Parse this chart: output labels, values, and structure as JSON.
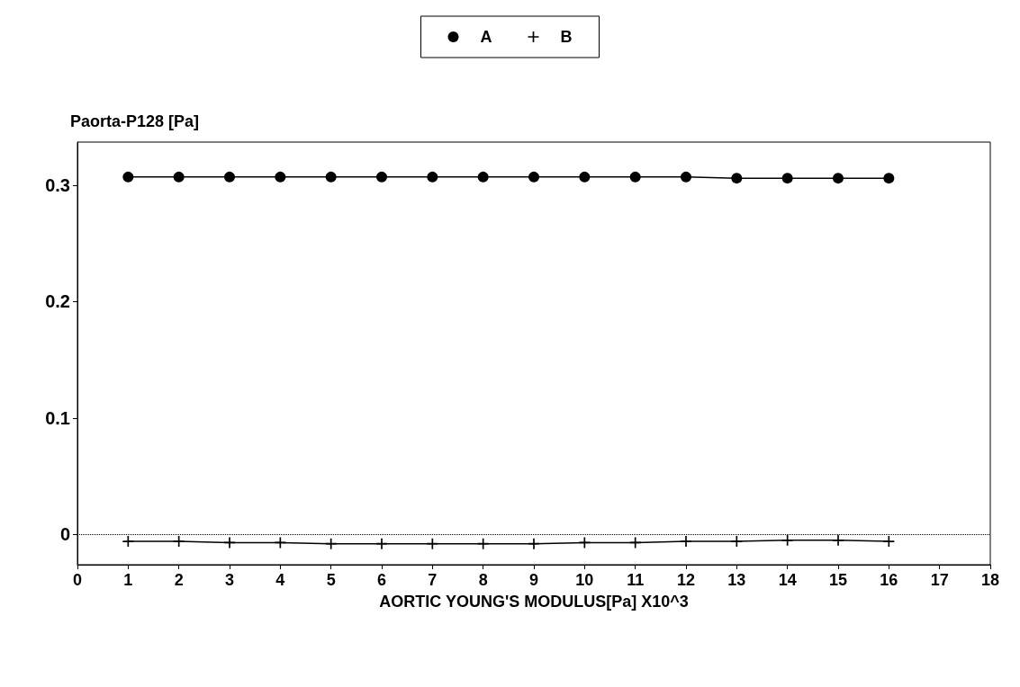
{
  "chart_data": {
    "type": "line",
    "xlabel": "AORTIC YOUNG'S MODULUS[Pa] X10^3",
    "ylabel": "Paorta-P128 [Pa]",
    "x": [
      1,
      2,
      3,
      4,
      5,
      6,
      7,
      8,
      9,
      10,
      11,
      12,
      13,
      14,
      15,
      16
    ],
    "series": [
      {
        "name": "A",
        "color": "#000000",
        "marker": "circle",
        "values": [
          0.307,
          0.307,
          0.307,
          0.307,
          0.307,
          0.307,
          0.307,
          0.307,
          0.307,
          0.307,
          0.307,
          0.307,
          0.306,
          0.306,
          0.306,
          0.306
        ]
      },
      {
        "name": "B",
        "color": "#000000",
        "marker": "cross",
        "values": [
          -0.006,
          -0.006,
          -0.007,
          -0.007,
          -0.008,
          -0.008,
          -0.008,
          -0.008,
          -0.008,
          -0.007,
          -0.007,
          -0.006,
          -0.006,
          -0.005,
          -0.005,
          -0.006
        ]
      }
    ],
    "xlim": [
      0,
      18
    ],
    "xticks": [
      0,
      1,
      2,
      3,
      4,
      5,
      6,
      7,
      8,
      9,
      10,
      11,
      12,
      13,
      14,
      15,
      16,
      17,
      18
    ],
    "ylim": [
      -0.026,
      0.337
    ],
    "yticks": [
      0,
      0.1,
      0.2,
      0.3
    ],
    "ref_lines": [
      {
        "axis": "y",
        "value": 0,
        "line_style": "dotted",
        "color": "#000000"
      }
    ],
    "grid": false,
    "legend": "top",
    "line_style": "solid"
  }
}
